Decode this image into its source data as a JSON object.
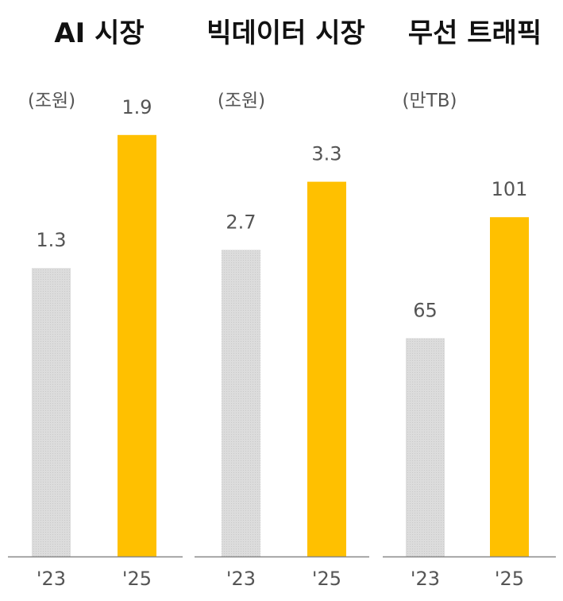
{
  "chart_data": [
    {
      "type": "bar",
      "title": "AI 시장",
      "unit": "(조원)",
      "categories": [
        "'23",
        "'25"
      ],
      "values": [
        1.3,
        1.9
      ],
      "value_labels": [
        "1.3",
        "1.9"
      ],
      "colors": [
        "#dcdcdc",
        "#ffc000"
      ],
      "ylim": [
        0,
        2.15
      ],
      "grid": false
    },
    {
      "type": "bar",
      "title": "빅데이터 시장",
      "unit": "(조원)",
      "categories": [
        "'23",
        "'25"
      ],
      "values": [
        2.7,
        3.3
      ],
      "value_labels": [
        "2.7",
        "3.3"
      ],
      "colors": [
        "#dcdcdc",
        "#ffc000"
      ],
      "ylim": [
        0,
        4.2
      ],
      "grid": false
    },
    {
      "type": "bar",
      "title": "무선 트래픽",
      "unit": "(만TB)",
      "categories": [
        "'23",
        "'25"
      ],
      "values": [
        65,
        101
      ],
      "value_labels": [
        "65",
        "101"
      ],
      "colors": [
        "#dcdcdc",
        "#ffc000"
      ],
      "ylim": [
        0,
        142
      ],
      "grid": false
    }
  ],
  "axis_color": "#888888"
}
